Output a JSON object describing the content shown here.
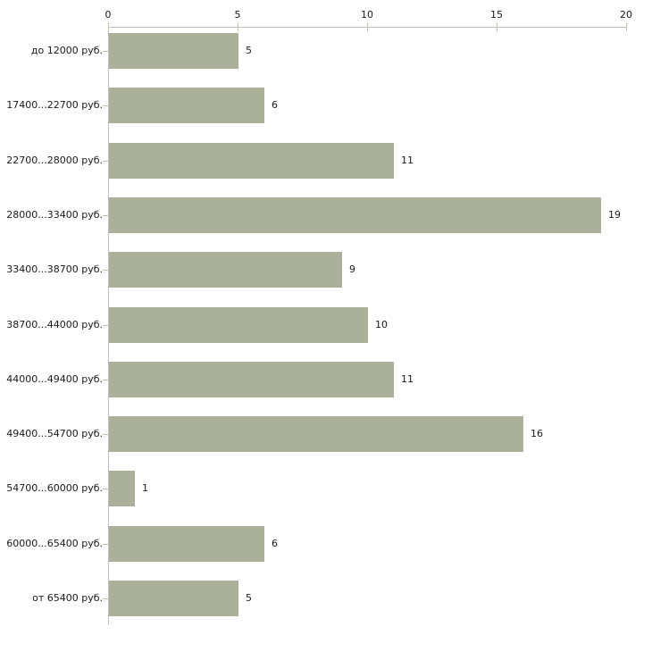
{
  "chart_data": {
    "type": "bar",
    "orientation": "horizontal",
    "title": "",
    "xlabel": "",
    "ylabel": "",
    "categories": [
      "до 12000 руб.",
      "17400...22700 руб.",
      "22700...28000 руб.",
      "28000...33400 руб.",
      "33400...38700 руб.",
      "38700...44000 руб.",
      "44000...49400 руб.",
      "49400...54700 руб.",
      "54700...60000 руб.",
      "60000...65400 руб.",
      "от 65400 руб."
    ],
    "values": [
      5,
      6,
      11,
      19,
      9,
      10,
      11,
      16,
      1,
      6,
      5
    ],
    "x_ticks": [
      0,
      5,
      10,
      15,
      20
    ],
    "xlim": [
      0,
      20
    ],
    "grid": false,
    "legend": false,
    "value_labels_shown": true,
    "colors": {
      "bar": "#aab09a",
      "axis": "#c0c0c0",
      "tick": "#bec3aa",
      "text": "#1a1a1a",
      "background": "#ffffff"
    }
  }
}
